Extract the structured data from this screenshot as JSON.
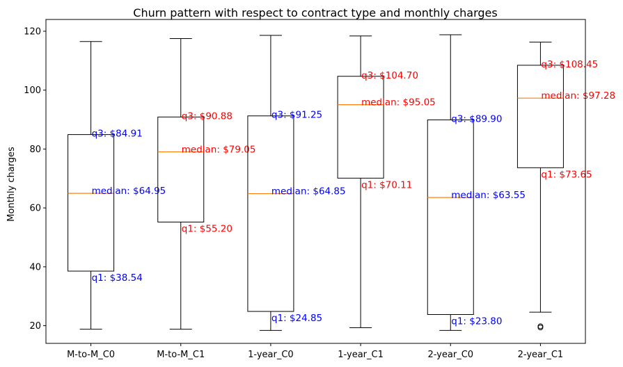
{
  "chart_data": {
    "type": "box",
    "title": "Churn pattern with respect to contract type and monthly charges",
    "xlabel": "",
    "ylabel": "Monthly charges",
    "ylim": [
      14,
      124
    ],
    "yticks": [
      20,
      40,
      60,
      80,
      100,
      120
    ],
    "categories": [
      "M-to-M_C0",
      "M-to-M_C1",
      "1-year_C0",
      "1-year_C1",
      "2-year_C0",
      "2-year_C1"
    ],
    "boxes": [
      {
        "label": "M-to-M_C0",
        "whisker_low": 18.8,
        "q1": 38.54,
        "median": 64.95,
        "q3": 84.91,
        "whisker_high": 116.5,
        "outliers": [],
        "annotations": {
          "q1": "q1: $38.54",
          "median": "median: $64.95",
          "q3": "q3: $84.91"
        },
        "annotation_color": "#0000ff"
      },
      {
        "label": "M-to-M_C1",
        "whisker_low": 18.8,
        "q1": 55.2,
        "median": 79.05,
        "q3": 90.88,
        "whisker_high": 117.5,
        "outliers": [],
        "annotations": {
          "q1": "q1: $55.20",
          "median": "median: $79.05",
          "q3": "q3: $90.88"
        },
        "annotation_color": "#ff0000"
      },
      {
        "label": "1-year_C0",
        "whisker_low": 18.4,
        "q1": 24.85,
        "median": 64.85,
        "q3": 91.25,
        "whisker_high": 118.6,
        "outliers": [],
        "annotations": {
          "q1": "q1: $24.85",
          "median": "median: $64.85",
          "q3": "q3: $91.25"
        },
        "annotation_color": "#0000ff"
      },
      {
        "label": "1-year_C1",
        "whisker_low": 19.3,
        "q1": 70.11,
        "median": 95.05,
        "q3": 104.7,
        "whisker_high": 118.4,
        "outliers": [],
        "annotations": {
          "q1": "q1: $70.11",
          "median": "median: $95.05",
          "q3": "q3: $104.70"
        },
        "annotation_color": "#ff0000"
      },
      {
        "label": "2-year_C0",
        "whisker_low": 18.4,
        "q1": 23.8,
        "median": 63.55,
        "q3": 89.9,
        "whisker_high": 118.8,
        "outliers": [],
        "annotations": {
          "q1": "q1: $23.80",
          "median": "median: $63.55",
          "q3": "q3: $89.90"
        },
        "annotation_color": "#0000ff"
      },
      {
        "label": "2-year_C1",
        "whisker_low": 24.6,
        "q1": 73.65,
        "median": 97.28,
        "q3": 108.45,
        "whisker_high": 116.3,
        "outliers": [
          19.4,
          19.8
        ],
        "annotations": {
          "q1": "q1: $73.65",
          "median": "median: $97.28",
          "q3": "q3: $108.45"
        },
        "annotation_color": "#ff0000"
      }
    ],
    "median_color": "#ff7f0e",
    "box_color": "#000000",
    "grid": false,
    "legend": "none"
  }
}
